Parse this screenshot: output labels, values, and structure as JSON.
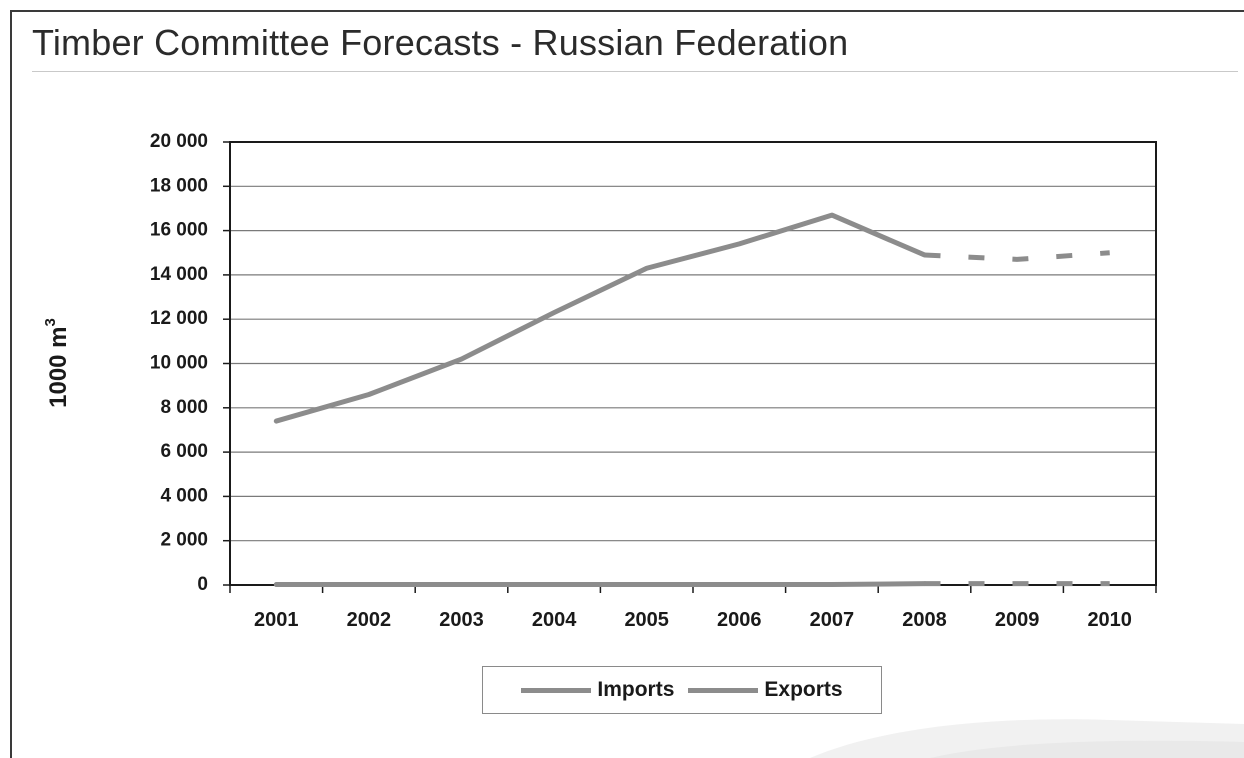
{
  "slide": {
    "title": "Timber Committee Forecasts - Russian Federation"
  },
  "colors": {
    "series_line": "#8c8c8c",
    "gridline": "#7a7a7a",
    "plot_border": "#1a1a1a"
  },
  "chart_data": {
    "type": "line",
    "title": "",
    "xlabel": "",
    "ylabel": "1000 m",
    "ylabel_superscript": "3",
    "x": [
      "2001",
      "2002",
      "2003",
      "2004",
      "2005",
      "2006",
      "2007",
      "2008",
      "2009",
      "2010"
    ],
    "ylim": [
      0,
      20000
    ],
    "yticks": [
      0,
      2000,
      4000,
      6000,
      8000,
      10000,
      12000,
      14000,
      16000,
      18000,
      20000
    ],
    "ytick_labels": [
      "0",
      "2 000",
      "4 000",
      "6 000",
      "8 000",
      "10 000",
      "12 000",
      "14 000",
      "16 000",
      "18 000",
      "20 000"
    ],
    "grid": true,
    "legend_position": "bottom",
    "series": [
      {
        "name": "Imports",
        "values": [
          7400,
          8600,
          10200,
          12300,
          14300,
          15400,
          16700,
          14900,
          14700,
          15000
        ],
        "solid_through": "2008",
        "forecast_style": "dashed"
      },
      {
        "name": "Exports",
        "values": [
          20,
          20,
          20,
          20,
          20,
          20,
          20,
          60,
          60,
          60
        ],
        "solid_through": "2008",
        "forecast_style": "dashed"
      }
    ]
  }
}
